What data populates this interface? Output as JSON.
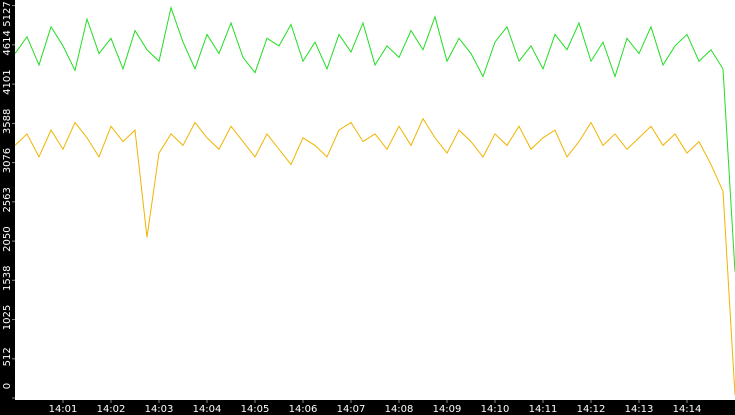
{
  "chart_data": {
    "type": "line",
    "x": [
      0,
      0.25,
      0.5,
      0.75,
      1,
      1.25,
      1.5,
      1.75,
      2,
      2.25,
      2.5,
      2.75,
      3,
      3.25,
      3.5,
      3.75,
      4,
      4.25,
      4.5,
      4.75,
      5,
      5.25,
      5.5,
      5.75,
      6,
      6.25,
      6.5,
      6.75,
      7,
      7.25,
      7.5,
      7.75,
      8,
      8.25,
      8.5,
      8.75,
      9,
      9.25,
      9.5,
      9.75,
      10,
      10.25,
      10.5,
      10.75,
      11,
      11.25,
      11.5,
      11.75,
      12,
      12.25,
      12.5,
      12.75,
      13,
      13.25,
      13.5,
      13.75,
      14,
      14.25,
      14.5,
      14.75,
      15
    ],
    "series": [
      {
        "color": "#22dd22",
        "values": [
          4500,
          4720,
          4350,
          4850,
          4600,
          4280,
          4950,
          4500,
          4700,
          4300,
          4800,
          4550,
          4400,
          5100,
          4650,
          4300,
          4750,
          4500,
          4900,
          4450,
          4250,
          4700,
          4600,
          4880,
          4400,
          4650,
          4300,
          4750,
          4520,
          4900,
          4350,
          4600,
          4450,
          4800,
          4550,
          4980,
          4400,
          4700,
          4500,
          4200,
          4650,
          4850,
          4400,
          4600,
          4300,
          4750,
          4550,
          4900,
          4400,
          4650,
          4200,
          4700,
          4500,
          4850,
          4350,
          4600,
          4750,
          4400,
          4550,
          4300,
          1650
        ]
      },
      {
        "color": "#f0b400",
        "values": [
          3300,
          3450,
          3150,
          3500,
          3250,
          3600,
          3400,
          3150,
          3550,
          3350,
          3500,
          2100,
          3200,
          3450,
          3300,
          3600,
          3400,
          3250,
          3550,
          3350,
          3150,
          3450,
          3250,
          3050,
          3400,
          3300,
          3150,
          3500,
          3600,
          3350,
          3450,
          3250,
          3550,
          3300,
          3650,
          3400,
          3200,
          3500,
          3350,
          3150,
          3450,
          3300,
          3550,
          3250,
          3400,
          3500,
          3150,
          3350,
          3600,
          3300,
          3450,
          3250,
          3400,
          3550,
          3300,
          3450,
          3200,
          3350,
          3050,
          2700,
          40
        ]
      }
    ],
    "xlim": [
      0,
      15
    ],
    "xticks": [
      {
        "value": 1,
        "label": "14:01"
      },
      {
        "value": 2,
        "label": "14:02"
      },
      {
        "value": 3,
        "label": "14:03"
      },
      {
        "value": 4,
        "label": "14:04"
      },
      {
        "value": 5,
        "label": "14:05"
      },
      {
        "value": 6,
        "label": "14:06"
      },
      {
        "value": 7,
        "label": "14:07"
      },
      {
        "value": 8,
        "label": "14:08"
      },
      {
        "value": 9,
        "label": "14:09"
      },
      {
        "value": 10,
        "label": "14:10"
      },
      {
        "value": 11,
        "label": "14:11"
      },
      {
        "value": 12,
        "label": "14:12"
      },
      {
        "value": 13,
        "label": "14:13"
      },
      {
        "value": 14,
        "label": "14:14"
      }
    ],
    "ylim": [
      0,
      5200
    ],
    "yticks": [
      0,
      512,
      1025,
      1538,
      2050,
      2563,
      3076,
      3588,
      4101,
      4614,
      5127
    ]
  }
}
